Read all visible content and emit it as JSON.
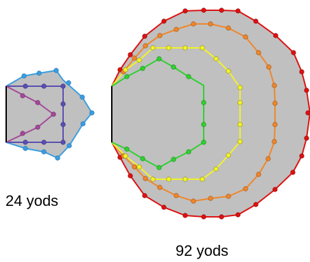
{
  "figure": {
    "left_label": "24 yods",
    "right_label": "92 yods"
  },
  "colors": {
    "fill": "#c0c0c0",
    "edge": "#000000",
    "blue": "#3a9ee0",
    "indigo": "#5a4fb0",
    "violet": "#a5489a",
    "red": "#dd1111",
    "orange": "#f0862a",
    "yellow": "#f2f22a",
    "green": "#30d030"
  }
}
